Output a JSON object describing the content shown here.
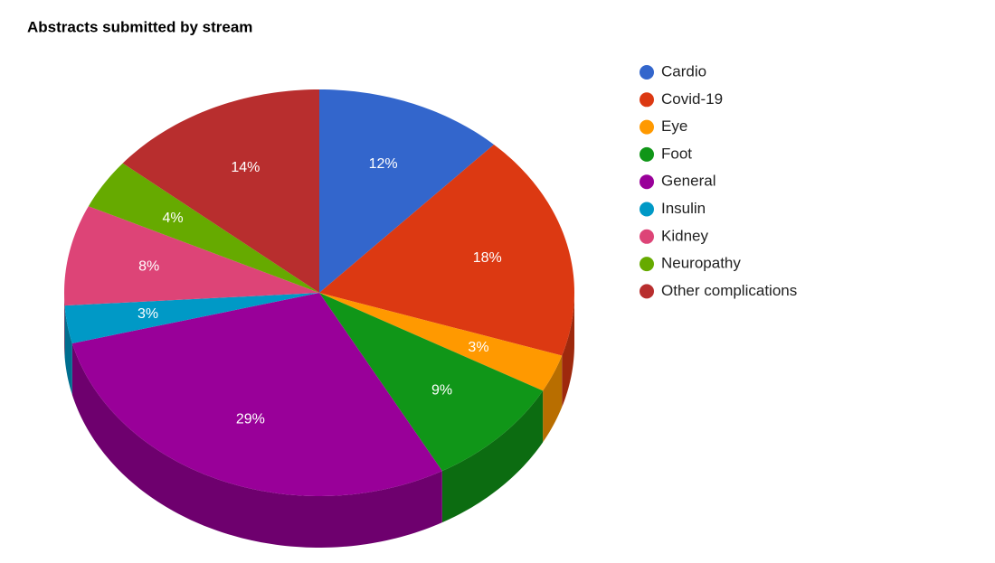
{
  "chart_data": {
    "type": "pie3d",
    "title": "Abstracts submitted by stream",
    "categories": [
      "Cardio",
      "Covid-19",
      "Eye",
      "Foot",
      "General",
      "Insulin",
      "Kidney",
      "Neuropathy",
      "Other complications"
    ],
    "values": [
      12,
      18,
      3,
      9,
      29,
      3,
      8,
      4,
      14
    ],
    "value_labels": [
      "12%",
      "18%",
      "3%",
      "9%",
      "29%",
      "3%",
      "8%",
      "4%",
      "14%"
    ],
    "colors": [
      "#3366cc",
      "#dc3912",
      "#ff9900",
      "#109618",
      "#990099",
      "#0099c6",
      "#dd4477",
      "#66aa00",
      "#b82e2e"
    ],
    "legend": "right"
  }
}
